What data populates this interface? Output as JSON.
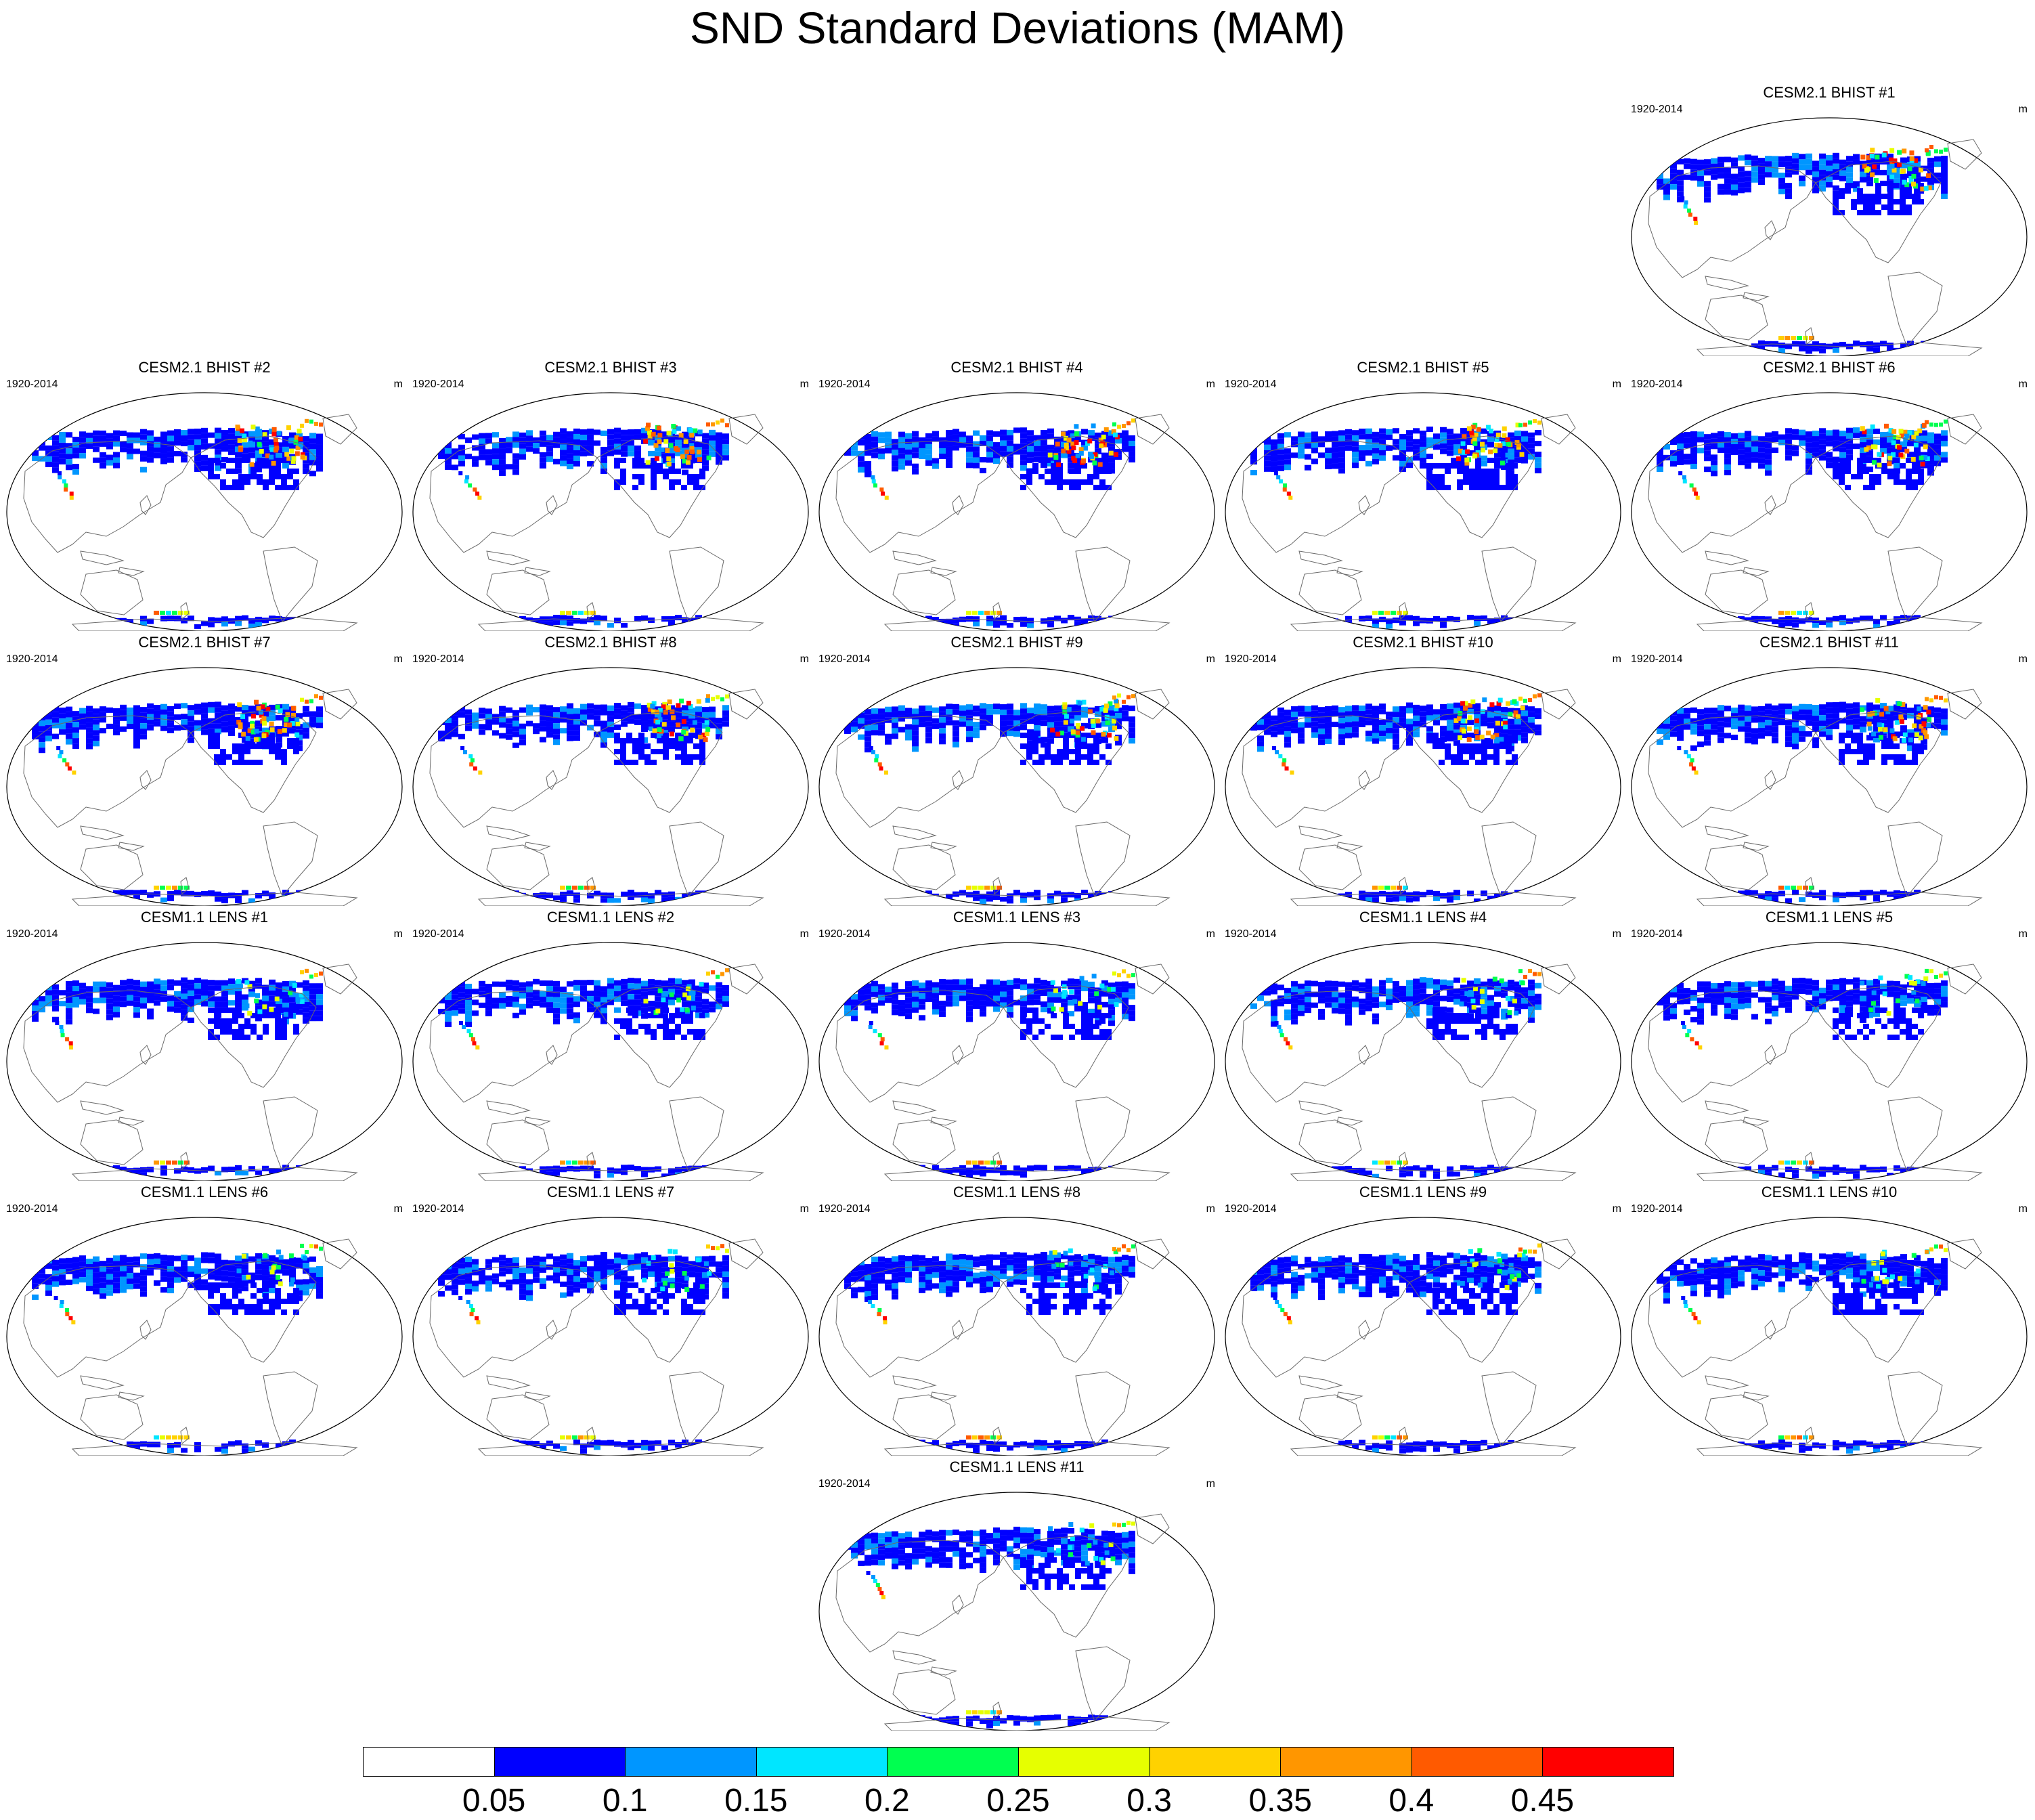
{
  "figure": {
    "title": "SND Standard Deviations (MAM)"
  },
  "panels": [
    {
      "title": "CESM2.1 BHIST #1",
      "period": "1920-2014",
      "units": "m",
      "ensemble": "BHIST",
      "arctic_high": true
    },
    {
      "title": "CESM2.1 BHIST #2",
      "period": "1920-2014",
      "units": "m",
      "ensemble": "BHIST",
      "arctic_high": true
    },
    {
      "title": "CESM2.1 BHIST #3",
      "period": "1920-2014",
      "units": "m",
      "ensemble": "BHIST",
      "arctic_high": true
    },
    {
      "title": "CESM2.1 BHIST #4",
      "period": "1920-2014",
      "units": "m",
      "ensemble": "BHIST",
      "arctic_high": true
    },
    {
      "title": "CESM2.1 BHIST #5",
      "period": "1920-2014",
      "units": "m",
      "ensemble": "BHIST",
      "arctic_high": true
    },
    {
      "title": "CESM2.1 BHIST #6",
      "period": "1920-2014",
      "units": "m",
      "ensemble": "BHIST",
      "arctic_high": true
    },
    {
      "title": "CESM2.1 BHIST #7",
      "period": "1920-2014",
      "units": "m",
      "ensemble": "BHIST",
      "arctic_high": true
    },
    {
      "title": "CESM2.1 BHIST #8",
      "period": "1920-2014",
      "units": "m",
      "ensemble": "BHIST",
      "arctic_high": true
    },
    {
      "title": "CESM2.1 BHIST #9",
      "period": "1920-2014",
      "units": "m",
      "ensemble": "BHIST",
      "arctic_high": true
    },
    {
      "title": "CESM2.1 BHIST #10",
      "period": "1920-2014",
      "units": "m",
      "ensemble": "BHIST",
      "arctic_high": true
    },
    {
      "title": "CESM2.1 BHIST #11",
      "period": "1920-2014",
      "units": "m",
      "ensemble": "BHIST",
      "arctic_high": true
    },
    {
      "title": "CESM1.1 LENS #1",
      "period": "1920-2014",
      "units": "m",
      "ensemble": "LENS",
      "arctic_high": false
    },
    {
      "title": "CESM1.1 LENS #2",
      "period": "1920-2014",
      "units": "m",
      "ensemble": "LENS",
      "arctic_high": false
    },
    {
      "title": "CESM1.1 LENS #3",
      "period": "1920-2014",
      "units": "m",
      "ensemble": "LENS",
      "arctic_high": false
    },
    {
      "title": "CESM1.1 LENS #4",
      "period": "1920-2014",
      "units": "m",
      "ensemble": "LENS",
      "arctic_high": false
    },
    {
      "title": "CESM1.1 LENS #5",
      "period": "1920-2014",
      "units": "m",
      "ensemble": "LENS",
      "arctic_high": false
    },
    {
      "title": "CESM1.1 LENS #6",
      "period": "1920-2014",
      "units": "m",
      "ensemble": "LENS",
      "arctic_high": false
    },
    {
      "title": "CESM1.1 LENS #7",
      "period": "1920-2014",
      "units": "m",
      "ensemble": "LENS",
      "arctic_high": false
    },
    {
      "title": "CESM1.1 LENS #8",
      "period": "1920-2014",
      "units": "m",
      "ensemble": "LENS",
      "arctic_high": false
    },
    {
      "title": "CESM1.1 LENS #9",
      "period": "1920-2014",
      "units": "m",
      "ensemble": "LENS",
      "arctic_high": false
    },
    {
      "title": "CESM1.1 LENS #10",
      "period": "1920-2014",
      "units": "m",
      "ensemble": "LENS",
      "arctic_high": false
    },
    {
      "title": "CESM1.1 LENS #11",
      "period": "1920-2014",
      "units": "m",
      "ensemble": "LENS",
      "arctic_high": false
    }
  ],
  "colorbar": {
    "labels": [
      "0.05",
      "0.1",
      "0.15",
      "0.2",
      "0.25",
      "0.3",
      "0.35",
      "0.4",
      "0.45"
    ],
    "colors": [
      "#ffffff",
      "#0000ff",
      "#0096ff",
      "#00e6ff",
      "#00ff50",
      "#e6ff00",
      "#ffd200",
      "#ff9600",
      "#ff5a00",
      "#ff0000"
    ]
  }
}
